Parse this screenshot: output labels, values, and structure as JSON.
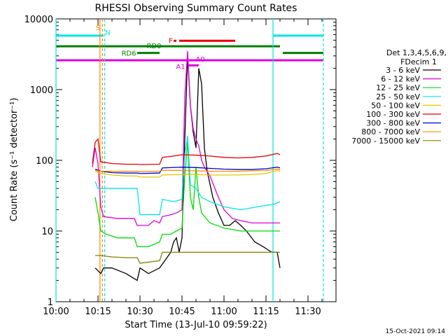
{
  "chart_data": {
    "type": "line",
    "title": "RHESSI Observing Summary Count Rates",
    "xlabel": "Start Time (13-Jul-10 09:59:22)",
    "ylabel": "Count Rate (s⁻¹ detector⁻¹)",
    "y_scale": "log",
    "ylim": [
      1,
      10000
    ],
    "xlim": [
      "10:00",
      "11:40"
    ],
    "x_ticks": [
      "10:00",
      "10:15",
      "10:30",
      "10:45",
      "11:00",
      "11:15",
      "11:30"
    ],
    "y_ticks": [
      "1",
      "10",
      "100",
      "1000",
      "10000"
    ],
    "footer_date": "15-Oct-2021 09:14",
    "legend": {
      "header": [
        "Det 1,3,4,5,6,9,",
        "FDecim 1"
      ],
      "position": "right"
    },
    "series": [
      {
        "name": "3 - 6 keV",
        "color": "#000000",
        "points": [
          [
            "10:14",
            3
          ],
          [
            "10:16",
            2.5
          ],
          [
            "10:17",
            3
          ],
          [
            "10:20",
            3
          ],
          [
            "10:25",
            2.5
          ],
          [
            "10:29",
            2
          ],
          [
            "10:30",
            3
          ],
          [
            "10:33",
            2.5
          ],
          [
            "10:37",
            3
          ],
          [
            "10:41",
            5
          ],
          [
            "10:42",
            7
          ],
          [
            "10:43",
            8
          ],
          [
            "10:44",
            5
          ],
          [
            "10:45",
            8
          ],
          [
            "10:46",
            200
          ],
          [
            "10:47",
            3000
          ],
          [
            "10:48",
            600
          ],
          [
            "10:49",
            250
          ],
          [
            "10:50",
            150
          ],
          [
            "10:51",
            2000
          ],
          [
            "10:52",
            1200
          ],
          [
            "10:53",
            150
          ],
          [
            "10:54",
            70
          ],
          [
            "10:56",
            30
          ],
          [
            "10:58",
            18
          ],
          [
            "11:00",
            12
          ],
          [
            "11:02",
            12
          ],
          [
            "11:04",
            14
          ],
          [
            "11:06",
            12
          ],
          [
            "11:08",
            10
          ],
          [
            "11:11",
            7
          ],
          [
            "11:14",
            6
          ],
          [
            "11:17",
            5
          ],
          [
            "11:19",
            5
          ],
          [
            "11:20",
            3
          ]
        ]
      },
      {
        "name": "6 - 12 keV",
        "color": "#dd00dd",
        "points": [
          [
            "10:13",
            80
          ],
          [
            "10:14",
            150
          ],
          [
            "10:15",
            90
          ],
          [
            "10:16",
            22
          ],
          [
            "10:17",
            16
          ],
          [
            "10:22",
            15
          ],
          [
            "10:28",
            15
          ],
          [
            "10:29",
            12
          ],
          [
            "10:33",
            12
          ],
          [
            "10:35",
            14
          ],
          [
            "10:37",
            13
          ],
          [
            "10:38",
            16
          ],
          [
            "10:41",
            17
          ],
          [
            "10:43",
            18
          ],
          [
            "10:45",
            20
          ],
          [
            "10:46",
            800
          ],
          [
            "10:47",
            3500
          ],
          [
            "10:48",
            600
          ],
          [
            "10:49",
            280
          ],
          [
            "10:50",
            200
          ],
          [
            "10:51",
            160
          ],
          [
            "10:52",
            100
          ],
          [
            "10:53",
            80
          ],
          [
            "10:55",
            60
          ],
          [
            "10:58",
            30
          ],
          [
            "11:00",
            20
          ],
          [
            "11:03",
            15
          ],
          [
            "11:06",
            14
          ],
          [
            "11:10",
            13
          ],
          [
            "11:14",
            13
          ],
          [
            "11:18",
            13
          ],
          [
            "11:20",
            13
          ]
        ]
      },
      {
        "name": "12 - 25 keV",
        "color": "#00dd00",
        "points": [
          [
            "10:14",
            30
          ],
          [
            "10:15",
            18
          ],
          [
            "10:16",
            10
          ],
          [
            "10:18",
            9
          ],
          [
            "10:22",
            8
          ],
          [
            "10:28",
            8
          ],
          [
            "10:29",
            6
          ],
          [
            "10:33",
            6
          ],
          [
            "10:37",
            7
          ],
          [
            "10:38",
            9
          ],
          [
            "10:41",
            9
          ],
          [
            "10:43",
            10
          ],
          [
            "10:45",
            11
          ],
          [
            "10:46",
            60
          ],
          [
            "10:47",
            180
          ],
          [
            "10:48",
            30
          ],
          [
            "10:49",
            20
          ],
          [
            "10:50",
            80
          ],
          [
            "10:51",
            30
          ],
          [
            "10:52",
            18
          ],
          [
            "10:55",
            13
          ],
          [
            "11:00",
            11
          ],
          [
            "11:06",
            10
          ],
          [
            "11:12",
            10
          ],
          [
            "11:18",
            10
          ],
          [
            "11:20",
            10
          ]
        ]
      },
      {
        "name": "25 - 50 keV",
        "color": "#00e5e5",
        "points": [
          [
            "10:14",
            50
          ],
          [
            "10:15",
            40
          ],
          [
            "10:16",
            40
          ],
          [
            "10:20",
            40
          ],
          [
            "10:29",
            40
          ],
          [
            "10:30",
            17
          ],
          [
            "10:37",
            17
          ],
          [
            "10:38",
            28
          ],
          [
            "10:42",
            26
          ],
          [
            "10:45",
            28
          ],
          [
            "10:46",
            120
          ],
          [
            "10:47",
            220
          ],
          [
            "10:48",
            45
          ],
          [
            "10:50",
            40
          ],
          [
            "10:52",
            30
          ],
          [
            "10:55",
            26
          ],
          [
            "11:00",
            22
          ],
          [
            "11:06",
            20
          ],
          [
            "11:12",
            22
          ],
          [
            "11:18",
            24
          ],
          [
            "11:20",
            26
          ]
        ]
      },
      {
        "name": "50 - 100 keV",
        "color": "#e5c800",
        "points": [
          [
            "10:14",
            70
          ],
          [
            "10:16",
            65
          ],
          [
            "10:20",
            62
          ],
          [
            "10:25",
            60
          ],
          [
            "10:29",
            60
          ],
          [
            "10:30",
            58
          ],
          [
            "10:37",
            58
          ],
          [
            "10:38",
            62
          ],
          [
            "10:45",
            63
          ],
          [
            "10:50",
            63
          ],
          [
            "10:55",
            62
          ],
          [
            "11:00",
            62
          ],
          [
            "11:05",
            62
          ],
          [
            "11:10",
            63
          ],
          [
            "11:15",
            65
          ],
          [
            "11:19",
            72
          ],
          [
            "11:20",
            70
          ]
        ]
      },
      {
        "name": "100 - 300 keV",
        "color": "#e50000",
        "points": [
          [
            "10:13",
            90
          ],
          [
            "10:14",
            180
          ],
          [
            "10:15",
            200
          ],
          [
            "10:16",
            95
          ],
          [
            "10:20",
            90
          ],
          [
            "10:25",
            88
          ],
          [
            "10:29",
            88
          ],
          [
            "10:30",
            87
          ],
          [
            "10:37",
            88
          ],
          [
            "10:38",
            110
          ],
          [
            "10:42",
            115
          ],
          [
            "10:45",
            120
          ],
          [
            "10:50",
            118
          ],
          [
            "10:55",
            115
          ],
          [
            "11:00",
            110
          ],
          [
            "11:05",
            108
          ],
          [
            "11:10",
            110
          ],
          [
            "11:15",
            115
          ],
          [
            "11:19",
            125
          ],
          [
            "11:20",
            120
          ]
        ]
      },
      {
        "name": "300 - 800 keV",
        "color": "#0000cc",
        "points": [
          [
            "10:14",
            75
          ],
          [
            "10:16",
            70
          ],
          [
            "10:20",
            67
          ],
          [
            "10:25",
            66
          ],
          [
            "10:29",
            66
          ],
          [
            "10:30",
            65
          ],
          [
            "10:37",
            66
          ],
          [
            "10:38",
            78
          ],
          [
            "10:45",
            80
          ],
          [
            "10:50",
            79
          ],
          [
            "10:55",
            77
          ],
          [
            "11:00",
            75
          ],
          [
            "11:05",
            74
          ],
          [
            "11:10",
            74
          ],
          [
            "11:15",
            76
          ],
          [
            "11:19",
            80
          ],
          [
            "11:20",
            78
          ]
        ]
      },
      {
        "name": "800 - 7000 keV",
        "color": "#ff8800",
        "points": [
          [
            "10:14",
            72
          ],
          [
            "10:16",
            70
          ],
          [
            "10:20",
            70
          ],
          [
            "10:25",
            70
          ],
          [
            "10:29",
            70
          ],
          [
            "10:30",
            69
          ],
          [
            "10:37",
            70
          ],
          [
            "10:38",
            72
          ],
          [
            "10:45",
            72
          ],
          [
            "10:50",
            71
          ],
          [
            "10:55",
            70
          ],
          [
            "11:00",
            70
          ],
          [
            "11:05",
            70
          ],
          [
            "11:10",
            71
          ],
          [
            "11:15",
            72
          ],
          [
            "11:19",
            75
          ],
          [
            "11:20",
            74
          ]
        ]
      },
      {
        "name": "7000 - 15000 keV",
        "color": "#808000",
        "points": [
          [
            "10:14",
            4.5
          ],
          [
            "10:16",
            4.5
          ],
          [
            "10:20",
            4.3
          ],
          [
            "10:25",
            4.2
          ],
          [
            "10:29",
            4.2
          ],
          [
            "10:30",
            3.5
          ],
          [
            "10:37",
            3.8
          ],
          [
            "10:38",
            5
          ],
          [
            "10:45",
            5
          ],
          [
            "10:50",
            5
          ],
          [
            "10:55",
            5
          ],
          [
            "11:00",
            5
          ],
          [
            "11:05",
            5
          ],
          [
            "11:10",
            5
          ],
          [
            "11:15",
            5
          ],
          [
            "11:19",
            5
          ],
          [
            "11:20",
            5
          ]
        ]
      }
    ],
    "vertical_lines": [
      {
        "x": "10:00",
        "color": "#00e5e5",
        "style": "solid"
      },
      {
        "x": "10:15.7",
        "color": "#ff8800",
        "style": "solid"
      },
      {
        "x": "10:16.6",
        "color": "#ff8800",
        "style": "dashed"
      },
      {
        "x": "10:17.4",
        "color": "#00e5e5",
        "style": "dashed"
      },
      {
        "x": "11:17.5",
        "color": "#00e5e5",
        "style": "solid"
      },
      {
        "x": "11:35.5",
        "color": "#00e5e5",
        "style": "dashed"
      }
    ],
    "annotations": [
      {
        "label": "S",
        "x": "10:15",
        "color": "#ff8800"
      },
      {
        "label": "N",
        "x": "10:18.5",
        "color": "#00e5e5"
      },
      {
        "label": "F",
        "x": "10:41",
        "color": "#e50000"
      },
      {
        "label": "RD0",
        "x": "10:35",
        "color": "#008000"
      },
      {
        "label": "RD6",
        "x": "10:26",
        "color": "#008000"
      },
      {
        "label": "A1",
        "x": "10:44.5",
        "color": "#dd00dd"
      },
      {
        "label": "A0",
        "x": "10:51.5",
        "color": "#dd00dd"
      }
    ],
    "bands": [
      {
        "name": "N",
        "color": "#00e5e5",
        "y": 5800,
        "segments": [
          [
            "10:00",
            "10:17"
          ],
          [
            "11:17.5",
            "11:35.5"
          ]
        ]
      },
      {
        "name": "F",
        "color": "#e50000",
        "y": 4900,
        "segments": [
          [
            "10:42",
            "10:43"
          ],
          [
            "10:44",
            "11:04"
          ]
        ]
      },
      {
        "name": "RD0",
        "color": "#008000",
        "y": 4100,
        "segments": [
          [
            "10:00",
            "11:20"
          ]
        ]
      },
      {
        "name": "RD6",
        "color": "#008000",
        "y": 3300,
        "segments": [
          [
            "10:29",
            "10:37"
          ],
          [
            "11:21",
            "11:35.5"
          ]
        ]
      },
      {
        "name": "A0",
        "color": "#dd00dd",
        "y": 2600,
        "segments": [
          [
            "10:00",
            "11:35.5"
          ]
        ]
      },
      {
        "name": "A1",
        "color": "#dd00dd",
        "y": 2200,
        "segments": [
          [
            "10:46.5",
            "10:51"
          ]
        ]
      }
    ]
  }
}
